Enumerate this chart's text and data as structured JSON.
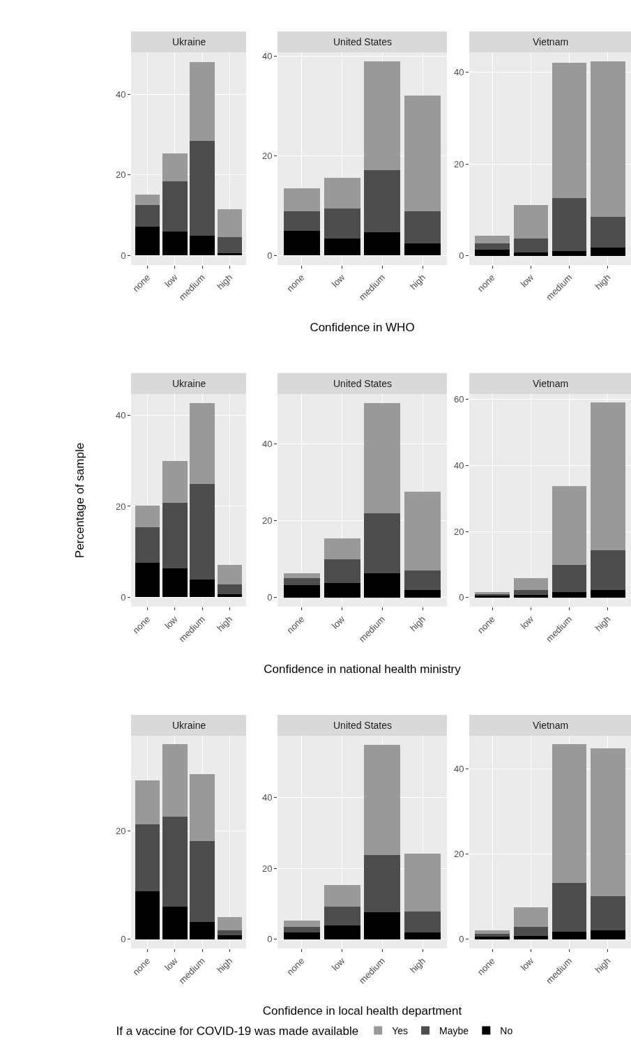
{
  "chart_data": [
    {
      "type": "bar",
      "stacked": true,
      "title": "Ukraine",
      "legend": "bottom",
      "legend_title": "If a vaccine for COVID-19 was made available",
      "categories": [
        "none",
        "low",
        "medium",
        "high"
      ],
      "ylim": [
        -2.4,
        50.5
      ],
      "yticks": [
        0,
        20,
        40
      ],
      "grid": true,
      "series": [
        {
          "name": "No",
          "color": "#000000",
          "values": [
            7.2,
            5.9,
            4.9,
            0.6
          ]
        },
        {
          "name": "Maybe",
          "color": "#4d4d4d",
          "values": [
            5.3,
            12.5,
            23.6,
            4.0
          ]
        },
        {
          "name": "Yes",
          "color": "#999999",
          "values": [
            2.6,
            6.9,
            19.6,
            6.9
          ]
        }
      ]
    },
    {
      "type": "bar",
      "stacked": true,
      "title": "United States",
      "xlabel": "Confidence in WHO",
      "legend": "bottom",
      "categories": [
        "none",
        "low",
        "medium",
        "high"
      ],
      "ylim": [
        -1.9,
        40.7
      ],
      "yticks": [
        0,
        20,
        40
      ],
      "grid": true,
      "series": [
        {
          "name": "No",
          "color": "#000000",
          "values": [
            4.9,
            3.4,
            4.6,
            2.4
          ]
        },
        {
          "name": "Maybe",
          "color": "#4d4d4d",
          "values": [
            3.9,
            6.0,
            12.5,
            6.4
          ]
        },
        {
          "name": "Yes",
          "color": "#999999",
          "values": [
            4.6,
            6.1,
            21.8,
            23.2
          ]
        }
      ]
    },
    {
      "type": "bar",
      "stacked": true,
      "title": "Vietnam",
      "legend": "bottom",
      "categories": [
        "none",
        "low",
        "medium",
        "high"
      ],
      "ylim": [
        -2.0,
        44.3
      ],
      "yticks": [
        0,
        20,
        40
      ],
      "grid": true,
      "series": [
        {
          "name": "No",
          "color": "#000000",
          "values": [
            1.4,
            0.8,
            1.1,
            1.8
          ]
        },
        {
          "name": "Maybe",
          "color": "#4d4d4d",
          "values": [
            1.3,
            2.9,
            11.4,
            6.7
          ]
        },
        {
          "name": "Yes",
          "color": "#999999",
          "values": [
            1.7,
            7.4,
            29.5,
            33.8
          ]
        }
      ]
    },
    {
      "type": "bar",
      "stacked": true,
      "title": "Ukraine",
      "ylabel": "Percentage of sample",
      "legend": "bottom",
      "categories": [
        "none",
        "low",
        "medium",
        "high"
      ],
      "ylim": [
        -2.1,
        44.7
      ],
      "yticks": [
        0,
        20,
        40
      ],
      "grid": true,
      "series": [
        {
          "name": "No",
          "color": "#000000",
          "values": [
            7.6,
            6.3,
            3.9,
            0.7
          ]
        },
        {
          "name": "Maybe",
          "color": "#4d4d4d",
          "values": [
            7.8,
            14.5,
            21.0,
            2.1
          ]
        },
        {
          "name": "Yes",
          "color": "#999999",
          "values": [
            4.8,
            9.2,
            17.8,
            4.3
          ]
        }
      ]
    },
    {
      "type": "bar",
      "stacked": true,
      "title": "United States",
      "xlabel": "Confidence in national health ministry",
      "legend": "bottom",
      "categories": [
        "none",
        "low",
        "medium",
        "high"
      ],
      "ylim": [
        -2.4,
        53.0
      ],
      "yticks": [
        0,
        20,
        40
      ],
      "grid": true,
      "series": [
        {
          "name": "No",
          "color": "#000000",
          "values": [
            3.3,
            3.8,
            6.4,
            1.9
          ]
        },
        {
          "name": "Maybe",
          "color": "#4d4d4d",
          "values": [
            1.8,
            6.2,
            15.6,
            5.1
          ]
        },
        {
          "name": "Yes",
          "color": "#999999",
          "values": [
            1.3,
            5.4,
            28.6,
            20.6
          ]
        }
      ]
    },
    {
      "type": "bar",
      "stacked": true,
      "title": "Vietnam",
      "legend": "bottom",
      "categories": [
        "none",
        "low",
        "medium",
        "high"
      ],
      "ylim": [
        -2.8,
        61.6
      ],
      "yticks": [
        0,
        20,
        40,
        60
      ],
      "grid": true,
      "series": [
        {
          "name": "No",
          "color": "#000000",
          "values": [
            0.7,
            0.8,
            1.7,
            2.2
          ]
        },
        {
          "name": "Maybe",
          "color": "#4d4d4d",
          "values": [
            0.4,
            1.4,
            8.1,
            12.0
          ]
        },
        {
          "name": "Yes",
          "color": "#999999",
          "values": [
            0.6,
            3.6,
            24.0,
            44.8
          ]
        }
      ]
    },
    {
      "type": "bar",
      "stacked": true,
      "title": "Ukraine",
      "legend": "bottom",
      "categories": [
        "none",
        "low",
        "medium",
        "high"
      ],
      "ylim": [
        -1.7,
        37.6
      ],
      "yticks": [
        0,
        20
      ],
      "grid": true,
      "series": [
        {
          "name": "No",
          "color": "#000000",
          "values": [
            8.9,
            6.0,
            3.2,
            0.8
          ]
        },
        {
          "name": "Maybe",
          "color": "#4d4d4d",
          "values": [
            12.3,
            16.6,
            14.9,
            0.9
          ]
        },
        {
          "name": "Yes",
          "color": "#999999",
          "values": [
            8.2,
            13.4,
            12.4,
            2.4
          ]
        }
      ]
    },
    {
      "type": "bar",
      "stacked": true,
      "title": "United States",
      "xlabel": "Confidence in local health department",
      "legend": "bottom",
      "categories": [
        "none",
        "low",
        "medium",
        "high"
      ],
      "ylim": [
        -2.6,
        57.5
      ],
      "yticks": [
        0,
        20,
        40
      ],
      "grid": true,
      "series": [
        {
          "name": "No",
          "color": "#000000",
          "values": [
            2.0,
            4.0,
            7.6,
            2.0
          ]
        },
        {
          "name": "Maybe",
          "color": "#4d4d4d",
          "values": [
            1.5,
            5.2,
            16.2,
            5.9
          ]
        },
        {
          "name": "Yes",
          "color": "#999999",
          "values": [
            1.8,
            6.2,
            31.2,
            16.3
          ]
        }
      ]
    },
    {
      "type": "bar",
      "stacked": true,
      "title": "Vietnam",
      "legend": "bottom",
      "categories": [
        "none",
        "low",
        "medium",
        "high"
      ],
      "ylim": [
        -2.2,
        47.8
      ],
      "yticks": [
        0,
        20,
        40
      ],
      "grid": true,
      "series": [
        {
          "name": "No",
          "color": "#000000",
          "values": [
            0.6,
            0.7,
            1.8,
            2.1
          ]
        },
        {
          "name": "Maybe",
          "color": "#4d4d4d",
          "values": [
            0.7,
            2.2,
            11.4,
            8.0
          ]
        },
        {
          "name": "Yes",
          "color": "#999999",
          "values": [
            0.8,
            4.5,
            32.6,
            34.8
          ]
        }
      ]
    }
  ]
}
